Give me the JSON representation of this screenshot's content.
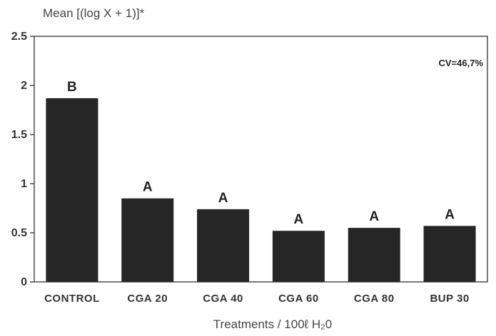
{
  "chart_data": {
    "type": "bar",
    "ylabel": "Mean [(log X + 1)]*",
    "xlabel": "Treatments / 100ℓ H₂0",
    "categories": [
      "CONTROL",
      "CGA 20",
      "CGA 40",
      "CGA 60",
      "CGA 80",
      "BUP 30"
    ],
    "values": [
      1.87,
      0.85,
      0.74,
      0.52,
      0.55,
      0.57
    ],
    "letters": [
      "B",
      "A",
      "A",
      "A",
      "A",
      "A"
    ],
    "ylim": [
      0,
      2.5
    ],
    "yticks": [
      "0",
      "0.5",
      "1",
      "1.5",
      "2",
      "2.5"
    ],
    "annotation": "CV=46,7%",
    "grid": false,
    "bar_color": "#262626",
    "frame_color": "#333333"
  }
}
